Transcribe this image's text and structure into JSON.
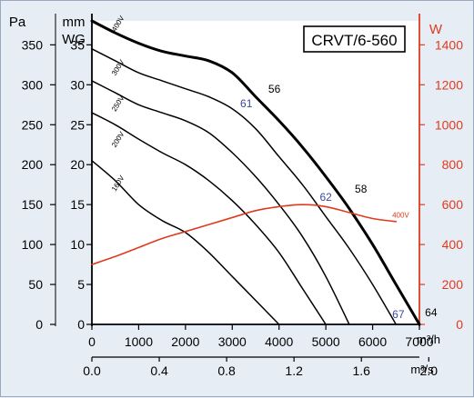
{
  "chart_data": {
    "type": "line",
    "title": "CRVT/6-560",
    "x_axis_primary": {
      "unit": "m³/h",
      "range": [
        0,
        7000
      ],
      "ticks": [
        0,
        1000,
        2000,
        3000,
        4000,
        5000,
        6000,
        7000
      ],
      "tick_labels": [
        "0",
        "1000",
        "2000",
        "3000",
        "4000",
        "5000",
        "6000",
        "7000"
      ]
    },
    "x_axis_secondary": {
      "unit": "m³/s",
      "range": [
        0,
        1.944
      ],
      "ticks": [
        0,
        0.4,
        0.8,
        1.2,
        1.6,
        2.0
      ],
      "tick_labels": [
        "0.0",
        "0.4",
        "0.8",
        "1.2",
        "1.6",
        "2.0"
      ]
    },
    "y_axis_left": {
      "unit": "Pa",
      "range": [
        0,
        380
      ],
      "ticks": [
        0,
        50,
        100,
        150,
        200,
        250,
        300,
        350
      ],
      "tick_labels": [
        "0",
        "50",
        "100",
        "150",
        "200",
        "250",
        "300",
        "350"
      ]
    },
    "y_axis_left_secondary": {
      "unit_lines": [
        "mm",
        "WG"
      ],
      "ticks": [
        0,
        5,
        10,
        15,
        20,
        25,
        30,
        35
      ],
      "tick_labels": [
        "0",
        "5",
        "10",
        "15",
        "20",
        "25",
        "30",
        "35"
      ]
    },
    "y_axis_right": {
      "unit": "W",
      "range": [
        0,
        1520
      ],
      "ticks": [
        0,
        200,
        400,
        600,
        800,
        1000,
        1200,
        1400
      ],
      "tick_labels": [
        "0",
        "200",
        "400",
        "600",
        "800",
        "1000",
        "1200",
        "1400"
      ]
    },
    "grid": false,
    "series": [
      {
        "name": "400V",
        "axis": "left",
        "color": "#000000",
        "bold": true,
        "x": [
          0,
          500,
          1000,
          1500,
          2000,
          2500,
          3000,
          3500,
          4000,
          4500,
          5000,
          5500,
          6000,
          6500,
          7000
        ],
        "y": [
          380,
          365,
          352,
          342,
          336,
          330,
          315,
          285,
          255,
          222,
          185,
          145,
          100,
          50,
          0
        ]
      },
      {
        "name": "300V",
        "axis": "left",
        "color": "#000000",
        "x": [
          0,
          500,
          1000,
          1500,
          2000,
          2500,
          3000,
          3500,
          4000,
          4500,
          5000,
          5500,
          6000,
          6500
        ],
        "y": [
          345,
          330,
          315,
          305,
          295,
          285,
          270,
          245,
          210,
          175,
          135,
          95,
          50,
          0
        ]
      },
      {
        "name": "250V",
        "axis": "left",
        "color": "#000000",
        "x": [
          0,
          500,
          1000,
          1500,
          2000,
          2500,
          3000,
          3500,
          4000,
          4500,
          5000,
          5500
        ],
        "y": [
          305,
          290,
          275,
          265,
          255,
          240,
          215,
          185,
          150,
          110,
          60,
          0
        ]
      },
      {
        "name": "200V",
        "axis": "left",
        "color": "#000000",
        "x": [
          0,
          500,
          1000,
          1500,
          2000,
          2500,
          3000,
          3500,
          4000,
          4500,
          5000
        ],
        "y": [
          265,
          250,
          232,
          215,
          200,
          180,
          155,
          125,
          90,
          45,
          0
        ]
      },
      {
        "name": "160V",
        "axis": "left",
        "color": "#000000",
        "x": [
          0,
          500,
          1000,
          1500,
          2000,
          2500,
          3000,
          3500,
          4000
        ],
        "y": [
          205,
          180,
          150,
          130,
          115,
          90,
          60,
          30,
          0
        ]
      },
      {
        "name": "400V",
        "axis": "right",
        "color": "#e03a1e",
        "x": [
          0,
          500,
          1000,
          1500,
          2000,
          2500,
          3000,
          3500,
          4000,
          4500,
          5000,
          5500,
          6000,
          6500
        ],
        "y": [
          300,
          340,
          385,
          430,
          465,
          500,
          535,
          570,
          590,
          600,
          590,
          560,
          530,
          515
        ]
      }
    ],
    "annotations": [
      {
        "text": "56",
        "x": 3900,
        "y": 290,
        "color": "#000000"
      },
      {
        "text": "61",
        "x": 3300,
        "y": 272,
        "color": "#3a48a0"
      },
      {
        "text": "58",
        "x": 5750,
        "y": 165,
        "color": "#000000"
      },
      {
        "text": "62",
        "x": 5000,
        "y": 155,
        "color": "#3a48a0"
      },
      {
        "text": "67",
        "x": 6550,
        "y": 8,
        "color": "#3a48a0"
      },
      {
        "text": "64",
        "x": 7250,
        "y": 10,
        "color": "#000000"
      }
    ],
    "curve_labels": [
      {
        "text": "400V",
        "x": 600,
        "y": 375
      },
      {
        "text": "300V",
        "x": 600,
        "y": 320
      },
      {
        "text": "250V",
        "x": 600,
        "y": 275
      },
      {
        "text": "200V",
        "x": 600,
        "y": 230
      },
      {
        "text": "160V",
        "x": 600,
        "y": 175
      },
      {
        "text": "400V",
        "x": 6600,
        "y": 535,
        "axis": "right"
      }
    ]
  }
}
